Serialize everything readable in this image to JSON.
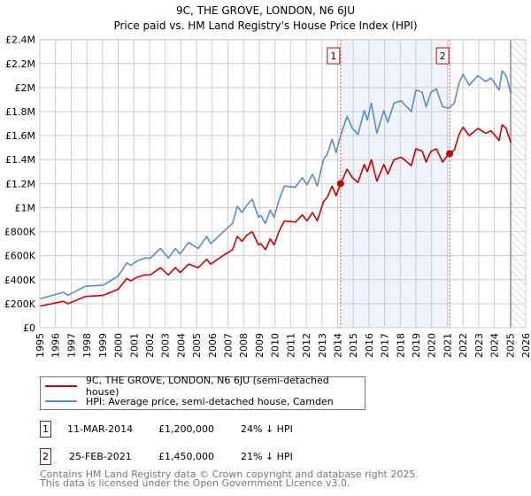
{
  "chart_data": {
    "type": "line",
    "title": "9C, THE GROVE, LONDON, N6 6JU",
    "subtitle": "Price paid vs. HM Land Registry's House Price Index (HPI)",
    "xlabel": "",
    "ylabel": "",
    "xlim": [
      1995,
      2026
    ],
    "ylim": [
      0,
      2.4
    ],
    "y_unit": "£M",
    "x_ticks": [
      "1995",
      "1996",
      "1997",
      "1998",
      "1999",
      "2000",
      "2001",
      "2002",
      "2003",
      "2004",
      "2005",
      "2006",
      "2007",
      "2008",
      "2009",
      "2010",
      "2011",
      "2012",
      "2013",
      "2014",
      "2015",
      "2016",
      "2017",
      "2018",
      "2019",
      "2020",
      "2021",
      "2022",
      "2023",
      "2024",
      "2025",
      "2026"
    ],
    "y_ticks": [
      {
        "v": 0,
        "label": "£0"
      },
      {
        "v": 0.2,
        "label": "£200K"
      },
      {
        "v": 0.4,
        "label": "£400K"
      },
      {
        "v": 0.6,
        "label": "£600K"
      },
      {
        "v": 0.8,
        "label": "£800K"
      },
      {
        "v": 1.0,
        "label": "£1M"
      },
      {
        "v": 1.2,
        "label": "£1.2M"
      },
      {
        "v": 1.4,
        "label": "£1.4M"
      },
      {
        "v": 1.6,
        "label": "£1.6M"
      },
      {
        "v": 1.8,
        "label": "£1.8M"
      },
      {
        "v": 2.0,
        "label": "£2M"
      },
      {
        "v": 2.2,
        "label": "£2.2M"
      },
      {
        "v": 2.4,
        "label": "£2.4M"
      }
    ],
    "grid": true,
    "x": [
      1995.0,
      1996.5,
      1996.8,
      1997.9,
      1999.05,
      2000.0,
      2000.55,
      2000.8,
      2001.2,
      2001.7,
      2002.05,
      2002.7,
      2003.2,
      2003.65,
      2003.95,
      2004.5,
      2005.1,
      2005.65,
      2005.9,
      2006.8,
      2007.3,
      2007.6,
      2007.9,
      2008.2,
      2008.55,
      2008.95,
      2009.1,
      2009.4,
      2009.7,
      2009.95,
      2010.25,
      2010.6,
      2011.3,
      2011.75,
      2012.05,
      2012.4,
      2012.7,
      2013.1,
      2013.35,
      2013.65,
      2013.9,
      2014.2,
      2014.6,
      2014.95,
      2015.3,
      2015.7,
      2015.9,
      2016.15,
      2016.5,
      2016.95,
      2017.2,
      2017.6,
      2018.05,
      2018.25,
      2018.7,
      2019.0,
      2019.4,
      2019.65,
      2019.95,
      2020.3,
      2020.7,
      2021.1,
      2021.45,
      2021.75,
      2022.0,
      2022.4,
      2022.95,
      2023.45,
      2023.8,
      2024.3,
      2024.5,
      2024.75,
      2025.05
    ],
    "series": [
      {
        "name": "9C, THE GROVE, LONDON, N6 6JU (semi-detached house)",
        "color": "#cc0000",
        "values": [
          0.18,
          0.22,
          0.2,
          0.26,
          0.27,
          0.32,
          0.41,
          0.39,
          0.42,
          0.44,
          0.44,
          0.5,
          0.44,
          0.5,
          0.46,
          0.53,
          0.5,
          0.57,
          0.53,
          0.61,
          0.65,
          0.76,
          0.72,
          0.77,
          0.8,
          0.69,
          0.7,
          0.65,
          0.74,
          0.69,
          0.8,
          0.89,
          0.88,
          0.94,
          0.89,
          0.96,
          0.89,
          1.05,
          1.09,
          1.18,
          1.1,
          1.2,
          1.32,
          1.25,
          1.21,
          1.36,
          1.3,
          1.4,
          1.22,
          1.36,
          1.28,
          1.4,
          1.42,
          1.4,
          1.35,
          1.49,
          1.47,
          1.38,
          1.47,
          1.49,
          1.38,
          1.45,
          1.48,
          1.61,
          1.67,
          1.6,
          1.66,
          1.62,
          1.64,
          1.56,
          1.69,
          1.66,
          1.54
        ]
      },
      {
        "name": "HPI: Average price, semi-detached house, Camden",
        "color": "#5b8bd0",
        "values": [
          0.24,
          0.295,
          0.27,
          0.345,
          0.355,
          0.43,
          0.54,
          0.52,
          0.555,
          0.58,
          0.58,
          0.66,
          0.58,
          0.66,
          0.615,
          0.71,
          0.66,
          0.76,
          0.7,
          0.81,
          0.87,
          1.01,
          0.96,
          1.02,
          1.07,
          0.92,
          0.935,
          0.87,
          0.98,
          0.92,
          1.06,
          1.18,
          1.17,
          1.25,
          1.19,
          1.28,
          1.18,
          1.4,
          1.45,
          1.57,
          1.46,
          1.6,
          1.76,
          1.66,
          1.61,
          1.81,
          1.73,
          1.87,
          1.62,
          1.81,
          1.71,
          1.87,
          1.89,
          1.86,
          1.8,
          1.98,
          1.96,
          1.84,
          1.96,
          1.99,
          1.84,
          1.83,
          1.87,
          2.04,
          2.11,
          2.02,
          2.1,
          2.05,
          2.08,
          1.98,
          2.14,
          2.1,
          1.95
        ]
      }
    ],
    "sales": [
      {
        "id": "1",
        "x": 2014.19,
        "y": 1.2,
        "date": "11-MAR-2014",
        "price": "£1,200,000",
        "hpi": "24% ↓ HPI"
      },
      {
        "id": "2",
        "x": 2021.15,
        "y": 1.45,
        "date": "25-FEB-2021",
        "price": "£1,450,000",
        "hpi": "21% ↓ HPI"
      }
    ],
    "shaded_range": [
      2014.19,
      2021.15
    ],
    "forecast_start": 2025.05,
    "legend": [
      "9C, THE GROVE, LONDON, N6 6JU (semi-detached house)",
      "HPI: Average price, semi-detached house, Camden"
    ],
    "legend_position": "below"
  },
  "footer": {
    "line1": "Contains HM Land Registry data © Crown copyright and database right 2025.",
    "line2": "This data is licensed under the Open Government Licence v3.0."
  }
}
